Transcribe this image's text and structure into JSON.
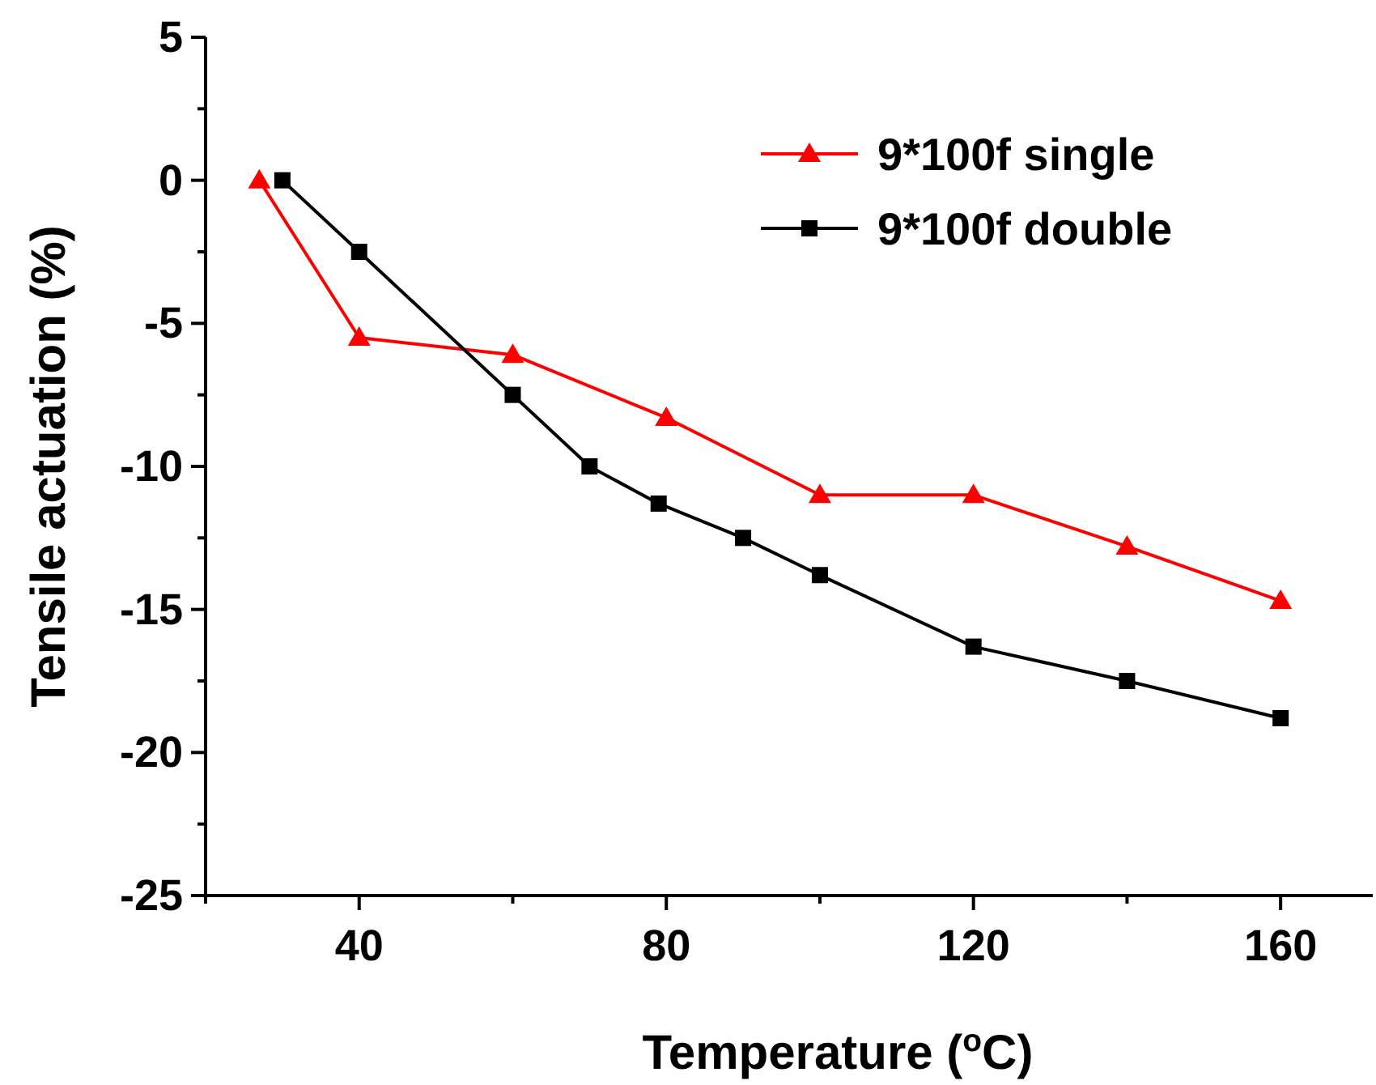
{
  "chart_data": {
    "type": "line",
    "xlabel": "Temperature ($^{o}$C)",
    "ylabel": "Tensile actuation (%)",
    "xlim": [
      20,
      172
    ],
    "ylim": [
      -25,
      5
    ],
    "xticks": [
      {
        "value": 20,
        "label": null
      },
      40,
      {
        "value": 60,
        "label": null
      },
      80,
      {
        "value": 100,
        "label": null
      },
      120,
      {
        "value": 140,
        "label": null
      },
      160
    ],
    "yticks": [
      -25,
      {
        "value": -22.5,
        "label": null
      },
      -20,
      {
        "value": -17.5,
        "label": null
      },
      -15,
      {
        "value": -12.5,
        "label": null
      },
      -10,
      {
        "value": -7.5,
        "label": null
      },
      -5,
      {
        "value": -2.5,
        "label": null
      },
      0,
      {
        "value": 2.5,
        "label": null
      },
      5
    ],
    "grid": false,
    "legend": "top right",
    "series": [
      {
        "name": "9*100f single",
        "color": "#ff0000",
        "marker": "triangle",
        "x": [
          27,
          40,
          60,
          80,
          100,
          120,
          140,
          160
        ],
        "values": [
          0,
          -5.5,
          -6.1,
          -8.3,
          -11,
          -11,
          -12.8,
          -14.7
        ]
      },
      {
        "name": "9*100f double",
        "color": "#000000",
        "marker": "square",
        "x": [
          30,
          40,
          60,
          70,
          79,
          90,
          100,
          120,
          140,
          160
        ],
        "values": [
          0,
          -2.5,
          -7.5,
          -10,
          -11.3,
          -12.5,
          -13.8,
          -16.3,
          -17.5,
          -18.8
        ]
      }
    ]
  }
}
